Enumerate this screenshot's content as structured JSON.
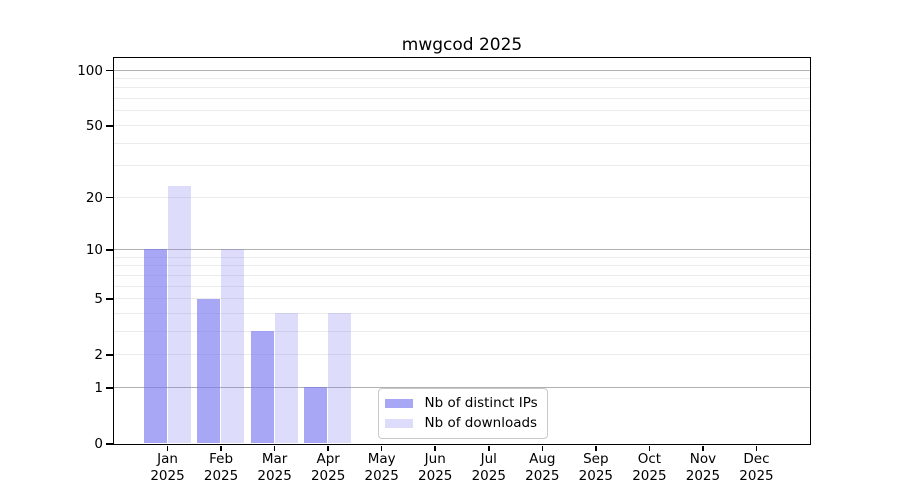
{
  "chart_data": {
    "type": "bar",
    "title": "mwgcod 2025",
    "categories": [
      "Jan",
      "Feb",
      "Mar",
      "Apr",
      "May",
      "Jun",
      "Jul",
      "Aug",
      "Sep",
      "Oct",
      "Nov",
      "Dec"
    ],
    "category_year": "2025",
    "series": [
      {
        "name": "Nb of distinct IPs",
        "color": "rgba(120,120,240,0.65)",
        "values": [
          10,
          5,
          3,
          1,
          0,
          0,
          0,
          0,
          0,
          0,
          0,
          0
        ]
      },
      {
        "name": "Nb of downloads",
        "color": "rgba(120,120,240,0.25)",
        "values": [
          23,
          10,
          4,
          4,
          0,
          0,
          0,
          0,
          0,
          0,
          0,
          0
        ]
      }
    ],
    "yscale": "log1p",
    "ylim": [
      0,
      117
    ],
    "ytick_values": [
      0,
      1,
      2,
      5,
      10,
      20,
      50,
      100
    ],
    "gridlines": {
      "major": [
        1,
        10,
        100
      ],
      "minor": [
        2,
        3,
        4,
        5,
        6,
        7,
        8,
        9,
        20,
        30,
        40,
        50,
        60,
        70,
        80,
        90
      ]
    },
    "grid": true,
    "legend_position": "lower center",
    "colors": {
      "major_grid": "#b0b0b0",
      "minor_grid": "#ebebeb",
      "frame": "#000000",
      "text": "#000000",
      "legend_border": "#c9c9c9"
    }
  }
}
